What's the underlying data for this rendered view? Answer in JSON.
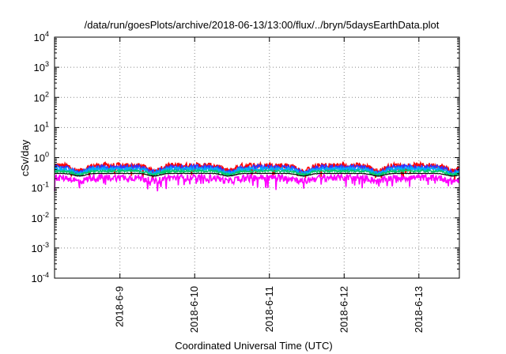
{
  "chart_data": {
    "type": "line",
    "title": "/data/run/goesPlots/archive/2018-06-13/13:00/flux/../bryn/5daysEarthData.plot",
    "xlabel": "Coordinated Universal Time (UTC)",
    "ylabel": "cSv/day",
    "yscale": "log",
    "ylim": [
      0.0001,
      10000
    ],
    "xlim": [
      "2018-06-08T03:00",
      "2018-06-13T13:00"
    ],
    "y_ticks": [
      {
        "base": "10",
        "exp": "-4"
      },
      {
        "base": "10",
        "exp": "-3"
      },
      {
        "base": "10",
        "exp": "-2"
      },
      {
        "base": "10",
        "exp": "-1"
      },
      {
        "base": "10",
        "exp": "0"
      },
      {
        "base": "10",
        "exp": "1"
      },
      {
        "base": "10",
        "exp": "2"
      },
      {
        "base": "10",
        "exp": "3"
      },
      {
        "base": "10",
        "exp": "4"
      }
    ],
    "x_ticks": [
      "2018-6-9",
      "2018-6-10",
      "2018-6-11",
      "2018-6-12",
      "2018-6-13"
    ],
    "grid": true,
    "legend": "none",
    "series": [
      {
        "color": "#ff0000",
        "base": 0.55,
        "amp": 0.35,
        "noise": 0.22
      },
      {
        "color": "#3333ff",
        "base": 0.48,
        "amp": 0.33,
        "noise": 0.2
      },
      {
        "color": "#00aaff",
        "base": 0.42,
        "amp": 0.3,
        "noise": 0.14
      },
      {
        "color": "#00cc66",
        "base": 0.36,
        "amp": 0.25,
        "noise": 0.08
      },
      {
        "color": "#ff00ff",
        "base": 0.22,
        "amp": 0.25,
        "noise": 0.25
      },
      {
        "color": "#000000",
        "base": 0.3,
        "amp": 0.18,
        "noise": 0.02
      }
    ],
    "dips_days": [
      0.33,
      1.33,
      2.33,
      3.33,
      4.33,
      5.33
    ]
  }
}
